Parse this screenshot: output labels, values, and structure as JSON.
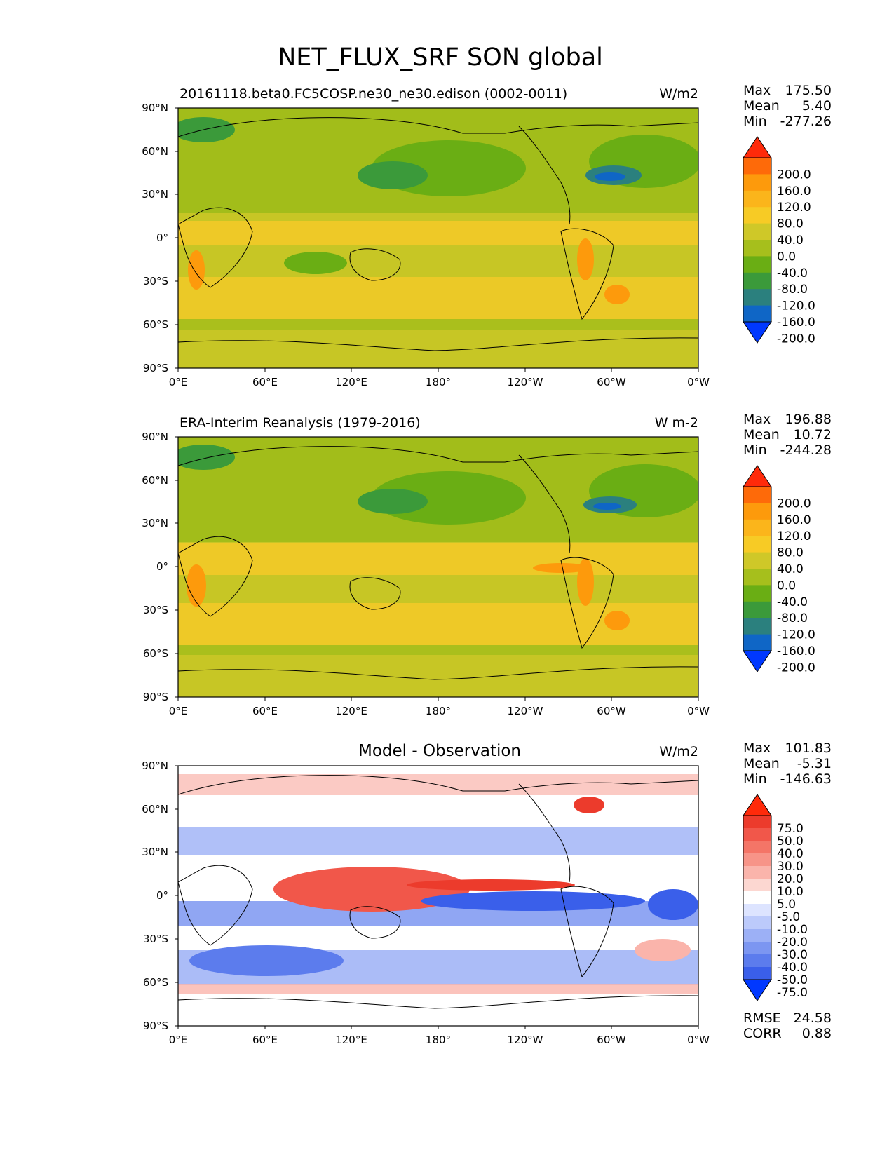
{
  "figure_title": "NET_FLUX_SRF SON global",
  "chart_data": [
    {
      "type": "heatmap",
      "title": "20161118.beta0.FC5COSP.ne30_ne30.edison (0002-0011)",
      "units": "W/m2",
      "x_ticks": [
        "0°E",
        "60°E",
        "120°E",
        "180°",
        "120°W",
        "60°W",
        "0°W"
      ],
      "y_ticks": [
        "90°N",
        "60°N",
        "30°N",
        "0°",
        "30°S",
        "60°S",
        "90°S"
      ],
      "xlim": [
        0,
        360
      ],
      "ylim": [
        -90,
        90
      ],
      "stats": {
        "max_label": "Max",
        "max": "175.50",
        "mean_label": "Mean",
        "mean": "5.40",
        "min_label": "Min",
        "min": "-277.26"
      },
      "colorbar": {
        "labels": [
          "200.0",
          "160.0",
          "120.0",
          "80.0",
          "40.0",
          "0.0",
          "-40.0",
          "-80.0",
          "-120.0",
          "-160.0",
          "-200.0"
        ],
        "colors": [
          "#ff2a0a",
          "#fe6a09",
          "#fd9a0c",
          "#fbb51b",
          "#f7cb25",
          "#cfc828",
          "#a6bf1c",
          "#6aae14",
          "#3b9a3a",
          "#2b807e",
          "#0f66c6",
          "#0038ff"
        ]
      }
    },
    {
      "type": "heatmap",
      "title": "ERA-Interim Reanalysis (1979-2016)",
      "units": "W m-2",
      "x_ticks": [
        "0°E",
        "60°E",
        "120°E",
        "180°",
        "120°W",
        "60°W",
        "0°W"
      ],
      "y_ticks": [
        "90°N",
        "60°N",
        "30°N",
        "0°",
        "30°S",
        "60°S",
        "90°S"
      ],
      "xlim": [
        0,
        360
      ],
      "ylim": [
        -90,
        90
      ],
      "stats": {
        "max_label": "Max",
        "max": "196.88",
        "mean_label": "Mean",
        "mean": "10.72",
        "min_label": "Min",
        "min": "-244.28"
      },
      "colorbar": {
        "labels": [
          "200.0",
          "160.0",
          "120.0",
          "80.0",
          "40.0",
          "0.0",
          "-40.0",
          "-80.0",
          "-120.0",
          "-160.0",
          "-200.0"
        ],
        "colors": [
          "#ff2a0a",
          "#fe6a09",
          "#fd9a0c",
          "#fbb51b",
          "#f7cb25",
          "#cfc828",
          "#a6bf1c",
          "#6aae14",
          "#3b9a3a",
          "#2b807e",
          "#0f66c6",
          "#0038ff"
        ]
      }
    },
    {
      "type": "heatmap",
      "title": "Model - Observation",
      "units": "W/m2",
      "x_ticks": [
        "0°E",
        "60°E",
        "120°E",
        "180°",
        "120°W",
        "60°W",
        "0°W"
      ],
      "y_ticks": [
        "90°N",
        "60°N",
        "30°N",
        "0°",
        "30°S",
        "60°S",
        "90°S"
      ],
      "xlim": [
        0,
        360
      ],
      "ylim": [
        -90,
        90
      ],
      "stats": {
        "max_label": "Max",
        "max": "101.83",
        "mean_label": "Mean",
        "mean": "-5.31",
        "min_label": "Min",
        "min": "-146.63"
      },
      "colorbar": {
        "labels": [
          "75.0",
          "50.0",
          "40.0",
          "30.0",
          "20.0",
          "10.0",
          "5.0",
          "-5.0",
          "-10.0",
          "-20.0",
          "-30.0",
          "-40.0",
          "-50.0",
          "-75.0"
        ],
        "colors": [
          "#ff2a0a",
          "#ec3b2c",
          "#f1574a",
          "#f47567",
          "#f79488",
          "#fab4ab",
          "#fcd7d1",
          "#ffffff",
          "#dde4ff",
          "#bccafb",
          "#9cb0f6",
          "#7c96f1",
          "#5c7ced",
          "#3a5fea",
          "#0038ff"
        ]
      },
      "scores": {
        "rmse_label": "RMSE",
        "rmse": "24.58",
        "corr_label": "CORR",
        "corr": "0.88"
      }
    }
  ]
}
